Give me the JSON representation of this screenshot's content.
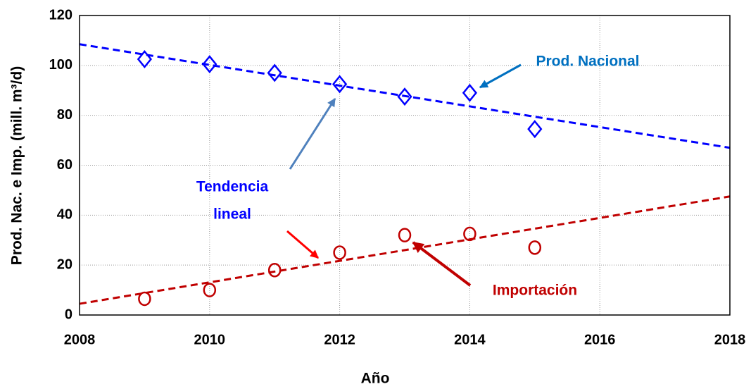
{
  "chart_data": {
    "type": "scatter",
    "x_label": "Año",
    "y_label": "Prod. Nac. e Imp. (mill. m³/d)",
    "xlim": [
      2008,
      2018
    ],
    "xticks": [
      2008,
      2010,
      2012,
      2014,
      2016,
      2018
    ],
    "ylim": [
      0,
      120
    ],
    "yticks": [
      0,
      20,
      40,
      60,
      80,
      100,
      120
    ],
    "grid": true,
    "series": [
      {
        "marker": "diamond",
        "color": "#0000ff",
        "x": [
          2009,
          2010,
          2011,
          2012,
          2013,
          2014,
          2015
        ],
        "values": [
          102.5,
          100.5,
          97,
          92.5,
          87.5,
          89,
          74.5
        ]
      },
      {
        "marker": "circle",
        "color": "#c00000",
        "x": [
          2009,
          2010,
          2011,
          2012,
          2013,
          2014,
          2015
        ],
        "values": [
          6.5,
          10,
          18,
          25,
          32,
          32.5,
          27
        ]
      }
    ],
    "trend_lines": [
      {
        "color": "#0000ff",
        "x": [
          2008,
          2018
        ],
        "values": [
          108.5,
          67
        ]
      },
      {
        "color": "#c00000",
        "x": [
          2008,
          2018
        ],
        "values": [
          4.5,
          47.5
        ]
      }
    ],
    "annotations": [
      {
        "text": "Prod. Nacional",
        "color": "#0070c0"
      },
      {
        "text": "Tendencia",
        "color": "#0000ff"
      },
      {
        "text": "lineal",
        "color": "#0000ff"
      },
      {
        "text": "Importación",
        "color": "#c00000"
      }
    ]
  }
}
